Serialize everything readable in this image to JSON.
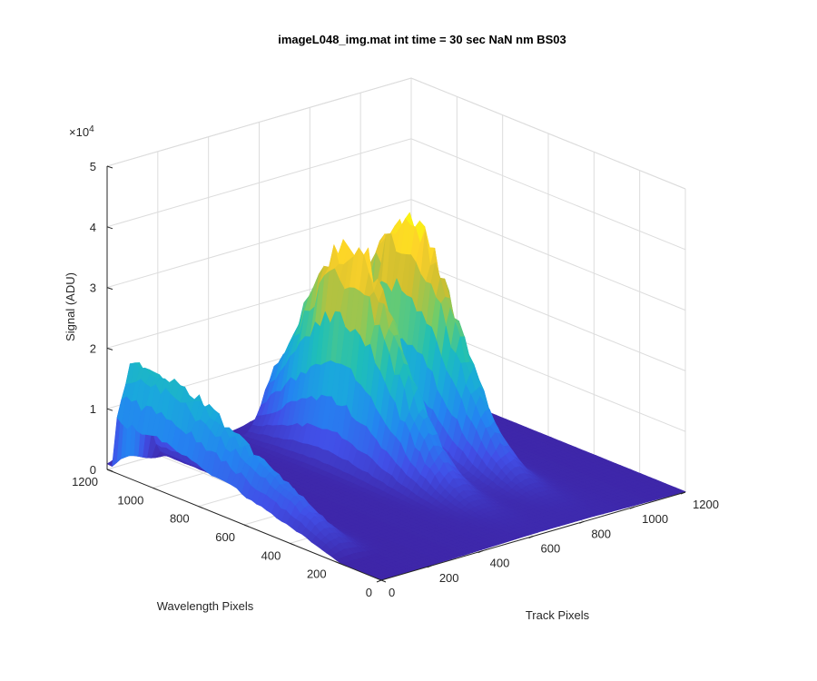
{
  "chart_data": {
    "type": "surface",
    "title": "imageL048_img.mat int time = 30 sec  NaN nm BS03",
    "xlabel": "Track Pixels",
    "ylabel": "Wavelength Pixels",
    "zlabel": "Signal (ADU)",
    "z_exponent_label": "×10",
    "z_exponent": "4",
    "xlim": [
      0,
      1200
    ],
    "ylim": [
      0,
      1200
    ],
    "zlim": [
      0,
      50000
    ],
    "x_ticks": [
      "0",
      "200",
      "400",
      "600",
      "800",
      "1000",
      "1200"
    ],
    "y_ticks": [
      "0",
      "200",
      "400",
      "600",
      "800",
      "1000",
      "1200"
    ],
    "z_ticks": [
      "0",
      "1",
      "2",
      "3",
      "4",
      "5"
    ],
    "grid": true,
    "colormap": "parula",
    "colormap_stops": [
      "#3e26a8",
      "#4150e8",
      "#2484f1",
      "#1aa9dc",
      "#1fbfb7",
      "#6fcc6b",
      "#cdbe30",
      "#fdd22a",
      "#f9fb0e"
    ],
    "peaks": [
      {
        "track_center": 60,
        "track_width": 55,
        "peak_signal": 17500,
        "wavelength_profile": "max at high wavelength pixels, decreasing toward 0"
      },
      {
        "track_center": 610,
        "track_width": 60,
        "peak_signal": 35000,
        "wavelength_profile": "max near 700-900 wavelength pixels"
      },
      {
        "track_center": 830,
        "track_width": 60,
        "peak_signal": 37500,
        "wavelength_profile": "max near 700-900 wavelength pixels"
      }
    ]
  }
}
